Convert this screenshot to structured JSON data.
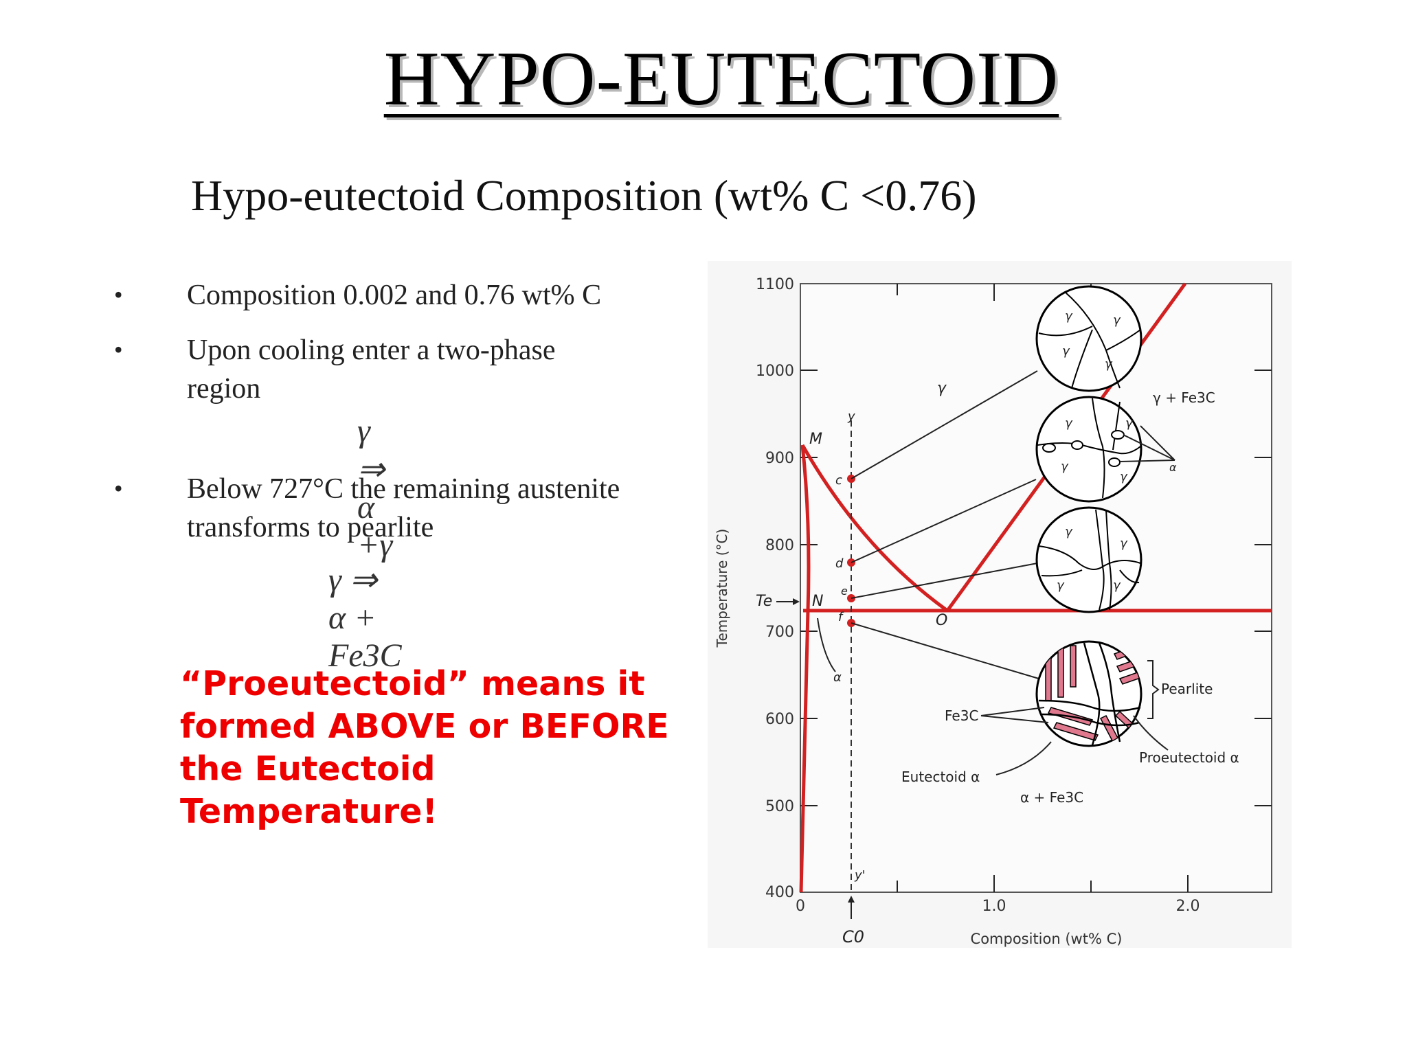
{
  "title": "HYPO-EUTECTOID",
  "subtitle": "Hypo-eutectoid Composition (wt% C <0.76)",
  "bullets": [
    {
      "marker": "•",
      "text": "Composition 0.002 and 0.76 wt% C"
    },
    {
      "marker": "•",
      "text": "Upon cooling enter a two-phase region"
    },
    {
      "marker": "•",
      "text": "Below 727°C the remaining austenite transforms to pearlite"
    }
  ],
  "equations": {
    "eq1": "γ ⇒ α +γ",
    "eq2": "γ ⇒ α + Fe3C"
  },
  "callout": "“Proeutectoid” means it formed ABOVE or BEFORE the Eutectoid Temperature!",
  "diagram": {
    "y_axis": {
      "label": "Temperature (°C)",
      "ticks": [
        "1100",
        "1000",
        "900",
        "800",
        "700",
        "600",
        "500",
        "400"
      ]
    },
    "x_axis": {
      "label": "Composition (wt% C)",
      "ticks": [
        "0",
        "1.0",
        "2.0"
      ]
    },
    "region_labels": {
      "gamma": "γ",
      "gamma_fe3c": "γ + Fe3C",
      "alpha_fe3c": "α + Fe3C",
      "alpha": "α"
    },
    "points": {
      "M": "M",
      "N": "N",
      "O": "O",
      "c": "c",
      "d": "d",
      "e": "e",
      "f": "f",
      "y": "y",
      "y_prime": "y'",
      "Te": "Te",
      "C0": "C0"
    },
    "micro_labels": {
      "gamma": "γ",
      "alpha": "α",
      "pearlite": "Pearlite",
      "fe3c": "Fe3C",
      "eutectoid_alpha": "Eutectoid α",
      "proeutectoid_alpha": "Proeutectoid α"
    },
    "colors": {
      "phase_line": "#d32020",
      "pearlite_lamellae": "#e0788e",
      "point": "#d32020"
    }
  }
}
